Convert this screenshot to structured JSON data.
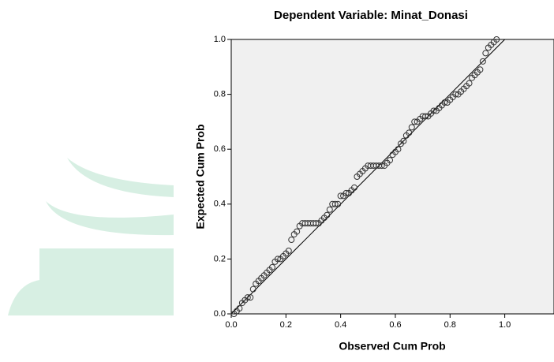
{
  "chart_data": {
    "type": "scatter",
    "title": "Dependent Variable: Minat_Donasi",
    "x_label": "Observed Cum Prob",
    "y_label": "Expected Cum Prob",
    "xlim": [
      0,
      1.18
    ],
    "ylim": [
      0,
      1
    ],
    "xticks": [
      {
        "value": 0,
        "label": "0.0"
      },
      0.2,
      0.4,
      0.6,
      0.8,
      {
        "value": 1,
        "label": "1.0"
      }
    ],
    "yticks": [
      {
        "value": 0,
        "label": "0.0"
      },
      0.2,
      0.4,
      0.6,
      0.8,
      {
        "value": 1,
        "label": "1.0"
      }
    ],
    "color": "#333333",
    "series": [
      {
        "x": [
          0.01,
          0.02,
          0.03,
          0.04,
          0.05,
          0.06,
          0.07,
          0.08,
          0.09,
          0.1,
          0.11,
          0.12,
          0.13,
          0.14,
          0.15,
          0.16,
          0.17,
          0.18,
          0.19,
          0.2,
          0.21,
          0.22,
          0.23,
          0.24,
          0.25,
          0.26,
          0.27,
          0.28,
          0.29,
          0.3,
          0.31,
          0.32,
          0.33,
          0.34,
          0.35,
          0.36,
          0.37,
          0.38,
          0.39,
          0.4,
          0.41,
          0.42,
          0.43,
          0.44,
          0.45,
          0.46,
          0.47,
          0.48,
          0.49,
          0.5,
          0.51,
          0.52,
          0.53,
          0.54,
          0.55,
          0.56,
          0.57,
          0.58,
          0.59,
          0.6,
          0.61,
          0.62,
          0.63,
          0.64,
          0.65,
          0.66,
          0.67,
          0.68,
          0.69,
          0.7,
          0.71,
          0.72,
          0.73,
          0.74,
          0.75,
          0.76,
          0.77,
          0.78,
          0.79,
          0.8,
          0.81,
          0.82,
          0.83,
          0.84,
          0.85,
          0.86,
          0.87,
          0.88,
          0.89,
          0.9,
          0.91,
          0.92,
          0.93,
          0.94,
          0.95,
          0.96,
          0.97
        ],
        "values": [
          0.0,
          0.01,
          0.02,
          0.04,
          0.05,
          0.06,
          0.06,
          0.09,
          0.11,
          0.12,
          0.13,
          0.14,
          0.15,
          0.16,
          0.17,
          0.19,
          0.2,
          0.2,
          0.21,
          0.22,
          0.23,
          0.27,
          0.29,
          0.3,
          0.32,
          0.33,
          0.33,
          0.33,
          0.33,
          0.33,
          0.33,
          0.33,
          0.34,
          0.35,
          0.36,
          0.38,
          0.4,
          0.4,
          0.4,
          0.43,
          0.43,
          0.44,
          0.44,
          0.45,
          0.46,
          0.5,
          0.51,
          0.52,
          0.53,
          0.54,
          0.54,
          0.54,
          0.54,
          0.54,
          0.54,
          0.54,
          0.55,
          0.56,
          0.58,
          0.59,
          0.6,
          0.62,
          0.63,
          0.65,
          0.66,
          0.68,
          0.7,
          0.7,
          0.71,
          0.72,
          0.72,
          0.72,
          0.73,
          0.74,
          0.74,
          0.75,
          0.76,
          0.77,
          0.77,
          0.78,
          0.79,
          0.8,
          0.8,
          0.81,
          0.82,
          0.83,
          0.84,
          0.86,
          0.87,
          0.88,
          0.89,
          0.92,
          0.95,
          0.97,
          0.98,
          0.99,
          1.0
        ]
      }
    ]
  }
}
